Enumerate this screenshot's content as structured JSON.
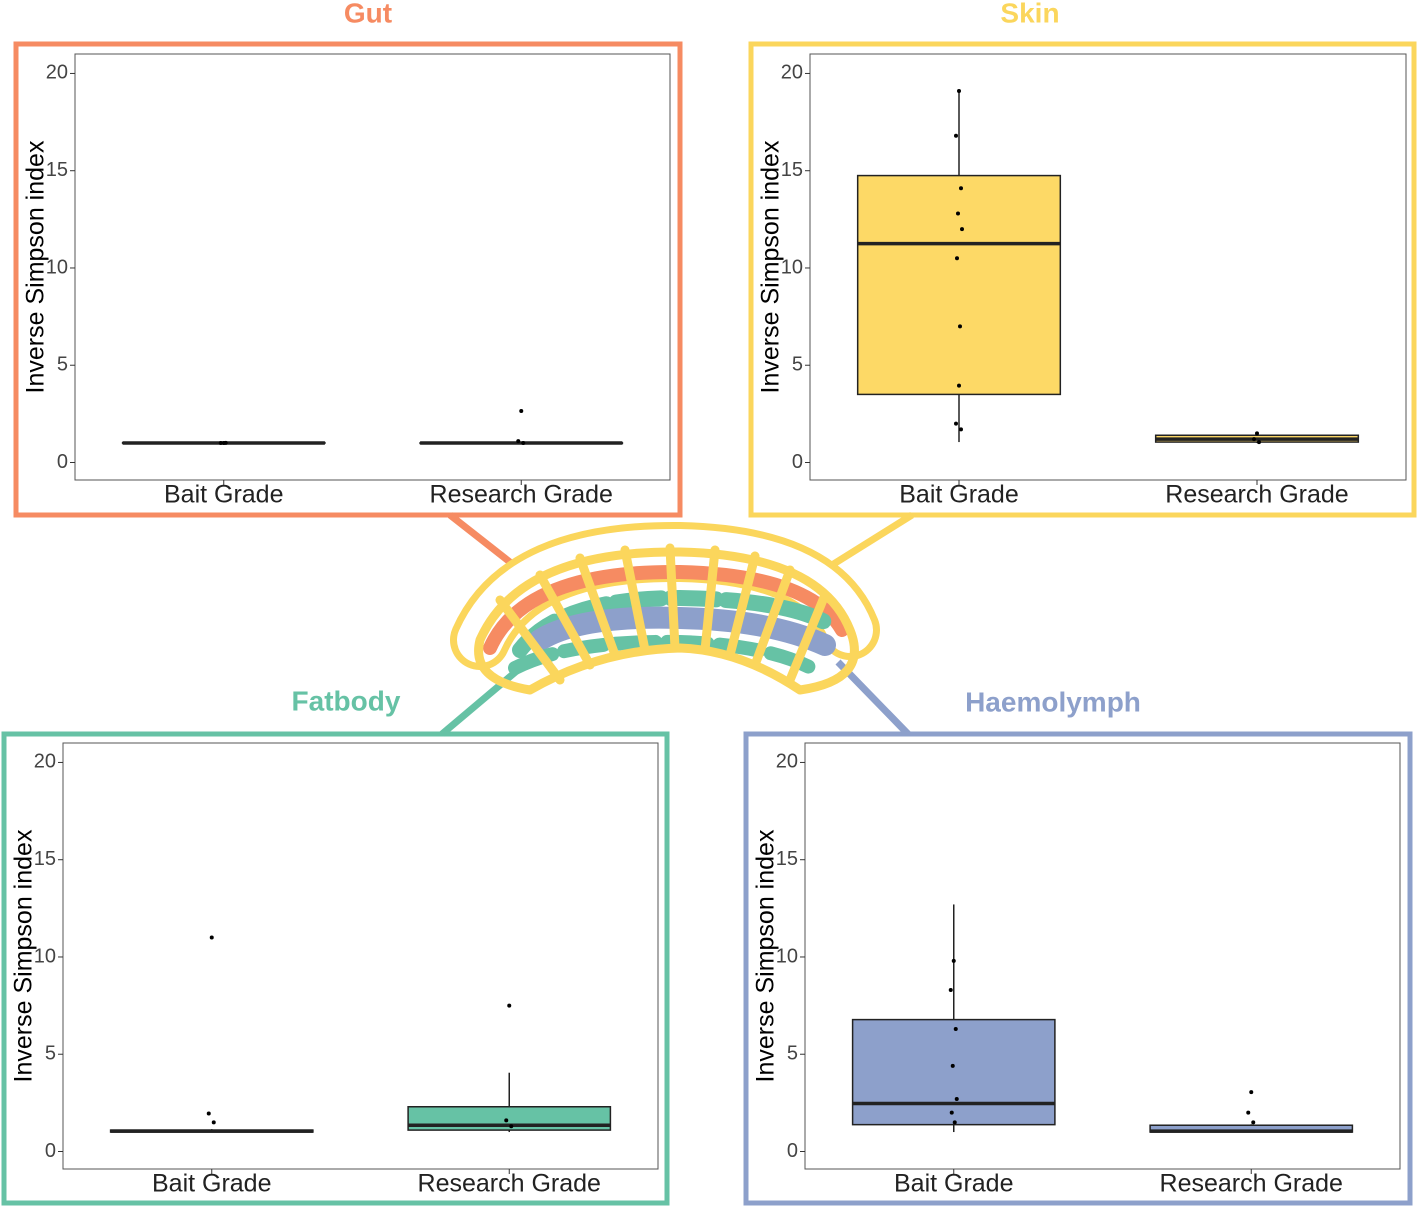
{
  "chart_data": [
    {
      "type": "box",
      "title": "Gut",
      "color": "#f68b62",
      "fill": "#f68b62",
      "ylabel": "Inverse Simpson index",
      "categories": [
        "Bait Grade",
        "Research Grade"
      ],
      "boxes": [
        {
          "low": 1.0,
          "q1": 1.0,
          "median": 1.0,
          "q3": 1.02,
          "high": 1.02
        },
        {
          "low": 0.98,
          "q1": 0.98,
          "median": 1.0,
          "q3": 1.01,
          "high": 1.05
        }
      ],
      "points": [
        [
          1.0,
          1.0,
          1.01
        ],
        [
          2.65,
          1.1,
          1.0
        ]
      ],
      "ylim": [
        -0.9,
        21
      ],
      "yticks": [
        0,
        5,
        10,
        15,
        20
      ]
    },
    {
      "type": "box",
      "title": "Skin",
      "color": "#fbd65c",
      "fill": "#fdd966",
      "ylabel": "Inverse Simpson index",
      "categories": [
        "Bait Grade",
        "Research Grade"
      ],
      "boxes": [
        {
          "low": 1.05,
          "q1": 3.5,
          "median": 11.25,
          "q3": 14.75,
          "high": 19.1
        },
        {
          "low": 1.0,
          "q1": 1.05,
          "median": 1.2,
          "q3": 1.4,
          "high": 1.5
        }
      ],
      "points": [
        [
          19.1,
          16.8,
          14.1,
          12.8,
          12.0,
          10.5,
          7.0,
          3.95,
          2.0,
          1.7
        ],
        [
          1.5,
          1.2,
          1.05
        ]
      ],
      "ylim": [
        -0.9,
        21
      ],
      "yticks": [
        0,
        5,
        10,
        15,
        20
      ]
    },
    {
      "type": "box",
      "title": "Fatbody",
      "color": "#66c2a5",
      "fill": "#66c2a5",
      "ylabel": "Inverse Simpson index",
      "categories": [
        "Bait Grade",
        "Research Grade"
      ],
      "boxes": [
        {
          "low": 1.0,
          "q1": 1.0,
          "median": 1.05,
          "q3": 1.1,
          "high": 1.15
        },
        {
          "low": 1.0,
          "q1": 1.1,
          "median": 1.35,
          "q3": 2.3,
          "high": 4.05
        }
      ],
      "points": [
        [
          11.0,
          1.95,
          1.5
        ],
        [
          7.5,
          1.6,
          1.3
        ]
      ],
      "ylim": [
        -0.9,
        21
      ],
      "yticks": [
        0,
        5,
        10,
        15,
        20
      ]
    },
    {
      "type": "box",
      "title": "Haemolymph",
      "color": "#8da0cb",
      "fill": "#8da0cb",
      "ylabel": "Inverse Simpson index",
      "categories": [
        "Bait Grade",
        "Research Grade"
      ],
      "boxes": [
        {
          "low": 1.0,
          "q1": 1.38,
          "median": 2.47,
          "q3": 6.78,
          "high": 12.7
        },
        {
          "low": 0.98,
          "q1": 1.0,
          "median": 1.05,
          "q3": 1.35,
          "high": 1.4
        }
      ],
      "points": [
        [
          9.8,
          8.3,
          6.3,
          4.4,
          2.7,
          2.0,
          1.5
        ],
        [
          3.05,
          2.0,
          1.5
        ]
      ],
      "ylim": [
        -0.9,
        21
      ],
      "yticks": [
        0,
        5,
        10,
        15,
        20
      ]
    }
  ]
}
